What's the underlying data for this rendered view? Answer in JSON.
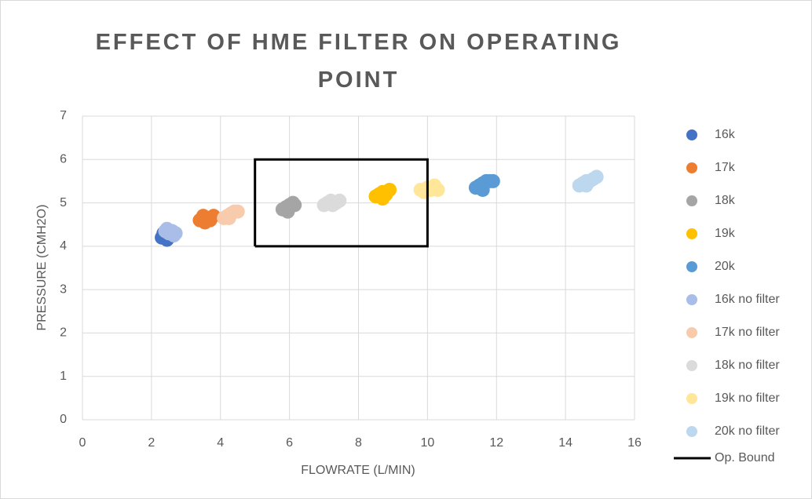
{
  "chart_data": {
    "type": "scatter",
    "title": "EFFECT OF HME FILTER ON OPERATING POINT",
    "x_label": "FLOWRATE (L/MIN)",
    "y_label": "PRESSURE (CMH2O)",
    "xlim": [
      0,
      16
    ],
    "xticks": [
      0,
      2,
      4,
      6,
      8,
      10,
      12,
      14,
      16
    ],
    "ylim": [
      0,
      7
    ],
    "yticks": [
      0,
      1,
      2,
      3,
      4,
      5,
      6,
      7
    ],
    "grid": true,
    "legend": "right",
    "series": [
      {
        "name": "16k",
        "color": "#4472c4",
        "x": [
          2.3,
          2.4,
          2.5,
          2.35,
          2.55,
          2.45
        ],
        "values": [
          4.2,
          4.25,
          4.2,
          4.3,
          4.25,
          4.15
        ]
      },
      {
        "name": "17k",
        "color": "#ed7d31",
        "x": [
          3.4,
          3.5,
          3.6,
          3.7,
          3.8,
          3.55
        ],
        "values": [
          4.6,
          4.7,
          4.65,
          4.6,
          4.7,
          4.55
        ]
      },
      {
        "name": "18k",
        "color": "#a5a5a5",
        "x": [
          5.8,
          5.9,
          6.0,
          6.1,
          5.95,
          6.15
        ],
        "values": [
          4.85,
          4.9,
          4.95,
          5.0,
          4.8,
          4.95
        ]
      },
      {
        "name": "19k",
        "color": "#ffc000",
        "x": [
          8.5,
          8.6,
          8.7,
          8.8,
          8.9,
          8.7
        ],
        "values": [
          5.15,
          5.2,
          5.25,
          5.2,
          5.3,
          5.1
        ]
      },
      {
        "name": "20k",
        "color": "#5b9bd5",
        "x": [
          11.4,
          11.5,
          11.6,
          11.7,
          11.8,
          11.9,
          11.6
        ],
        "values": [
          5.35,
          5.4,
          5.45,
          5.5,
          5.5,
          5.5,
          5.3
        ]
      },
      {
        "name": "16k no filter",
        "color": "#a9bde8",
        "x": [
          2.4,
          2.5,
          2.6,
          2.7,
          2.45,
          2.65
        ],
        "values": [
          4.35,
          4.3,
          4.35,
          4.3,
          4.4,
          4.25
        ]
      },
      {
        "name": "17k no filter",
        "color": "#f8cbad",
        "x": [
          4.1,
          4.2,
          4.3,
          4.4,
          4.5,
          4.25
        ],
        "values": [
          4.65,
          4.7,
          4.75,
          4.8,
          4.8,
          4.65
        ]
      },
      {
        "name": "18k no filter",
        "color": "#dbdbdb",
        "x": [
          7.0,
          7.1,
          7.2,
          7.35,
          7.45,
          7.25
        ],
        "values": [
          4.95,
          5.0,
          5.05,
          5.0,
          5.05,
          4.95
        ]
      },
      {
        "name": "19k no filter",
        "color": "#ffe699",
        "x": [
          9.8,
          9.9,
          10.0,
          10.1,
          10.2,
          10.3
        ],
        "values": [
          5.3,
          5.25,
          5.35,
          5.3,
          5.4,
          5.3
        ]
      },
      {
        "name": "20k no filter",
        "color": "#bdd7ee",
        "x": [
          14.4,
          14.5,
          14.6,
          14.7,
          14.8,
          14.9,
          14.6
        ],
        "values": [
          5.4,
          5.45,
          5.5,
          5.5,
          5.55,
          5.6,
          5.4
        ]
      },
      {
        "name": "Op. Bound",
        "type": "line",
        "color": "#000000",
        "x": [
          5,
          10,
          10,
          5,
          5
        ],
        "values": [
          4,
          4,
          6,
          6,
          4
        ]
      }
    ]
  }
}
